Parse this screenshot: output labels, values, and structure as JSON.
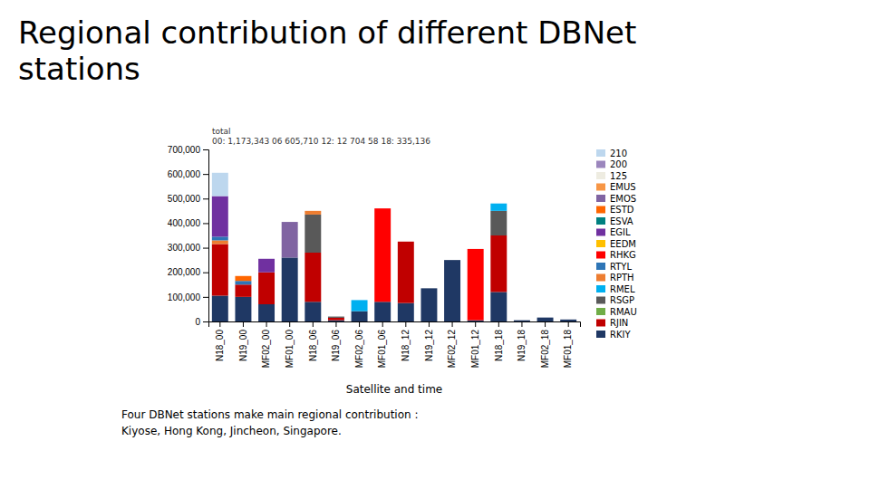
{
  "chart_data": {
    "type": "bar",
    "stacked": true,
    "title": "Regional contribution of different DBNet\nstations",
    "subtitle": "Four DBNet stations make main regional contribution :\nKiyose, Hong Kong, Jincheon, Singapore.",
    "x_label": "Satellite and time",
    "annotation": "total\n00: 1,173,343 06 605,710 12: 12 704 58 18: 335,136",
    "categories": [
      "N18_00",
      "N19_00",
      "MF02_00",
      "MF01_00",
      "N18_06",
      "N19_06",
      "MF02_06",
      "MF01_06",
      "N18_12",
      "N19_12",
      "MF02_12",
      "MF01_12",
      "N18_18",
      "N19_18",
      "MF02_18",
      "MF01_18"
    ],
    "series": [
      {
        "name": "RKIY",
        "color": "#1f3864",
        "values": [
          105000,
          100000,
          70000,
          260000,
          80000,
          5000,
          42000,
          80000,
          75000,
          135000,
          250000,
          5000,
          120000,
          5000,
          16000,
          8000
        ]
      },
      {
        "name": "RJIN",
        "color": "#c00000",
        "values": [
          210000,
          50000,
          130000,
          0,
          200000,
          10000,
          0,
          0,
          250000,
          0,
          0,
          0,
          230000,
          0,
          0,
          0
        ]
      },
      {
        "name": "RMAU",
        "color": "#70ad47",
        "values": [
          0,
          0,
          0,
          0,
          0,
          0,
          0,
          0,
          0,
          0,
          0,
          0,
          0,
          0,
          0,
          0
        ]
      },
      {
        "name": "RSGP",
        "color": "#595959",
        "values": [
          0,
          0,
          0,
          0,
          155000,
          5000,
          0,
          0,
          0,
          0,
          0,
          0,
          100000,
          0,
          0,
          0
        ]
      },
      {
        "name": "RMEL",
        "color": "#00b0f0",
        "values": [
          0,
          0,
          0,
          0,
          0,
          0,
          45000,
          0,
          0,
          0,
          0,
          0,
          30000,
          0,
          0,
          0
        ]
      },
      {
        "name": "RPTH",
        "color": "#ed7d31",
        "values": [
          15000,
          0,
          0,
          0,
          15000,
          0,
          0,
          0,
          0,
          0,
          0,
          0,
          0,
          0,
          0,
          0
        ]
      },
      {
        "name": "RTYL",
        "color": "#2e75b6",
        "values": [
          15000,
          15000,
          0,
          0,
          0,
          0,
          0,
          0,
          0,
          0,
          0,
          0,
          0,
          0,
          0,
          0
        ]
      },
      {
        "name": "RHKG",
        "color": "#ff0000",
        "values": [
          0,
          0,
          0,
          0,
          0,
          0,
          0,
          380000,
          0,
          0,
          0,
          290000,
          0,
          0,
          0,
          0
        ]
      },
      {
        "name": "EEDM",
        "color": "#ffc000",
        "values": [
          0,
          0,
          0,
          0,
          0,
          0,
          0,
          0,
          0,
          0,
          0,
          0,
          0,
          0,
          0,
          0
        ]
      },
      {
        "name": "EGIL",
        "color": "#7030a0",
        "values": [
          165000,
          0,
          55000,
          0,
          0,
          0,
          0,
          0,
          0,
          0,
          0,
          0,
          0,
          0,
          0,
          0
        ]
      },
      {
        "name": "ESVA",
        "color": "#008080",
        "values": [
          0,
          0,
          0,
          0,
          0,
          0,
          0,
          0,
          0,
          0,
          0,
          0,
          0,
          0,
          0,
          0
        ]
      },
      {
        "name": "ESTD",
        "color": "#ff6600",
        "values": [
          0,
          20000,
          0,
          0,
          0,
          0,
          0,
          0,
          0,
          0,
          0,
          0,
          0,
          0,
          0,
          0
        ]
      },
      {
        "name": "EMOS",
        "color": "#8064a2",
        "values": [
          0,
          0,
          0,
          145000,
          0,
          0,
          0,
          0,
          0,
          0,
          0,
          0,
          0,
          0,
          0,
          0
        ]
      },
      {
        "name": "EMUS",
        "color": "#f79646",
        "values": [
          0,
          0,
          0,
          0,
          0,
          0,
          0,
          0,
          0,
          0,
          0,
          0,
          0,
          0,
          0,
          0
        ]
      },
      {
        "name": "125",
        "color": "#eeece1",
        "values": [
          0,
          0,
          0,
          0,
          0,
          0,
          0,
          0,
          0,
          0,
          0,
          0,
          0,
          0,
          0,
          0
        ]
      },
      {
        "name": "200",
        "color": "#9b86bd",
        "values": [
          0,
          0,
          0,
          0,
          0,
          0,
          0,
          0,
          0,
          0,
          0,
          0,
          0,
          0,
          0,
          0
        ]
      },
      {
        "name": "210",
        "color": "#bdd7ee",
        "values": [
          95000,
          0,
          0,
          0,
          0,
          0,
          0,
          0,
          0,
          0,
          0,
          0,
          0,
          0,
          0,
          0
        ]
      }
    ],
    "ylim": [
      0,
      700000
    ],
    "yticks": [
      0,
      {
        "value": 100000,
        "label": "100,000"
      },
      {
        "value": 200000,
        "label": "200,000"
      },
      {
        "value": 300000,
        "label": "300,000"
      },
      {
        "value": 400000,
        "label": "400,000"
      },
      {
        "value": 500000,
        "label": "500,000"
      },
      {
        "value": 600000,
        "label": "600,000"
      },
      {
        "value": 700000,
        "label": "700,000"
      }
    ],
    "grid": false,
    "legend": "right"
  }
}
